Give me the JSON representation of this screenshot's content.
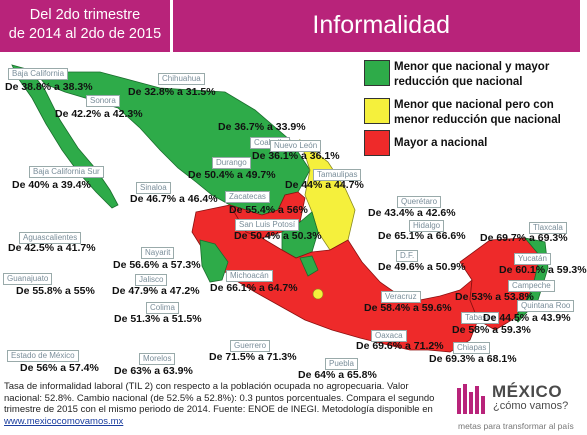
{
  "header": {
    "period_line1": "Del 2do trimestre",
    "period_line2": "de 2014 al 2do de 2015",
    "title": "Informalidad"
  },
  "legend": [
    {
      "color": "#2eab49",
      "text_line1": "Menor  que nacional y mayor",
      "text_line2": "reducción que nacional"
    },
    {
      "color": "#f5f03c",
      "text_line1": "Menor que nacional pero con",
      "text_line2": "menor reducción que nacional"
    },
    {
      "color": "#ee2a2a",
      "text_line1": "Mayor a nacional",
      "text_line2": ""
    }
  ],
  "states": [
    {
      "name": "Baja California",
      "value": "De 38.8% a 38.3%",
      "status": "green"
    },
    {
      "name": "Chihuahua",
      "value": "De 32.8% a 31.5%",
      "status": "green"
    },
    {
      "name": "Sonora",
      "value": "De 42.2% a 42.3%",
      "status": "green"
    },
    {
      "name": "Coahuila",
      "value": "De 36.7% a 33.9%",
      "status": "green"
    },
    {
      "name": "Nuevo León",
      "value": "De 36.1% a 36.1%",
      "status": "yellow"
    },
    {
      "name": "Baja California Sur",
      "value": "De 40% a 39.4%",
      "status": "green"
    },
    {
      "name": "Durango",
      "value": "De 50.4% a 49.7%",
      "status": "green"
    },
    {
      "name": "Tamaulipas",
      "value": "De 44% a 44.7%",
      "status": "yellow"
    },
    {
      "name": "Sinaloa",
      "value": "De 46.7% a 46.4%",
      "status": "green"
    },
    {
      "name": "Zacatecas",
      "value": "De 55.4% a 56%",
      "status": "red"
    },
    {
      "name": "Querétaro",
      "value": "De 43.4% a 42.6%",
      "status": "green"
    },
    {
      "name": "San Luis Potosí",
      "value": "De 50.4% a 50.3%",
      "status": "green"
    },
    {
      "name": "Aguascalientes",
      "value": "De 42.5% a 41.7%",
      "status": "green"
    },
    {
      "name": "Hidalgo",
      "value": "De 65.1% a 66.6%",
      "status": "red"
    },
    {
      "name": "Tlaxcala",
      "value": "De 69.7% a 69.3%",
      "status": "red"
    },
    {
      "name": "Nayarit",
      "value": "De 56.6% a 57.3%",
      "status": "red"
    },
    {
      "name": "D.F.",
      "value": "De 49.6% a 50.9%",
      "status": "yellow"
    },
    {
      "name": "Guanajuato",
      "value": "De 55.8% a 55%",
      "status": "red"
    },
    {
      "name": "Jalisco",
      "value": "De 47.9% a 47.2%",
      "status": "green"
    },
    {
      "name": "Michoacán",
      "value": "De 66.1% a 64.7%",
      "status": "red"
    },
    {
      "name": "Yucatán",
      "value": "De 60.1% a 59.3%",
      "status": "red"
    },
    {
      "name": "Veracruz",
      "value": "De 58.4% a 59.6%",
      "status": "red"
    },
    {
      "name": "Campeche",
      "value": "De 53% a 53.8%",
      "status": "red"
    },
    {
      "name": "Colima",
      "value": "De 51.3% a 51.5%",
      "status": "red"
    },
    {
      "name": "Tabasco",
      "value": "De 58% a 59.3%",
      "status": "red"
    },
    {
      "name": "Quintana Roo",
      "value": "De 44.5% a 43.9%",
      "status": "green"
    },
    {
      "name": "Estado de México",
      "value": "De 56% a 57.4%",
      "status": "red"
    },
    {
      "name": "Oaxaca",
      "value": "De 69.6% a 71.2%",
      "status": "red"
    },
    {
      "name": "Morelos",
      "value": "De 63% a 63.9%",
      "status": "red"
    },
    {
      "name": "Guerrero",
      "value": "De 71.5% a 71.3%",
      "status": "red"
    },
    {
      "name": "Chiapas",
      "value": "De 69.3% a 68.1%",
      "status": "red"
    },
    {
      "name": "Puebla",
      "value": "De 64% a 65.8%",
      "status": "red"
    }
  ],
  "footer": {
    "text": "Tasa de informalidad laboral (TIL 2) con respecto a la población ocupada no agropecuaria. Valor nacional: 52.8%. Cambio nacional (de 52.5% a 52.8%): 0.3 puntos porcentuales. Compara el segundo trimestre de 2015 con el mismo periodo de 2014. Fuente: ENOE de INEGI. Metodología disponible en",
    "link": "www.mexicocomovamos.mx"
  },
  "logo": {
    "name": "MÉXICO",
    "subtitle": "¿cómo vamos?",
    "tagline": "metas para transformar al país",
    "bar_color": "#b8237a"
  },
  "colors": {
    "header": "#b8237a",
    "green": "#2eab49",
    "yellow": "#f5f03c",
    "red": "#ee2a2a"
  }
}
